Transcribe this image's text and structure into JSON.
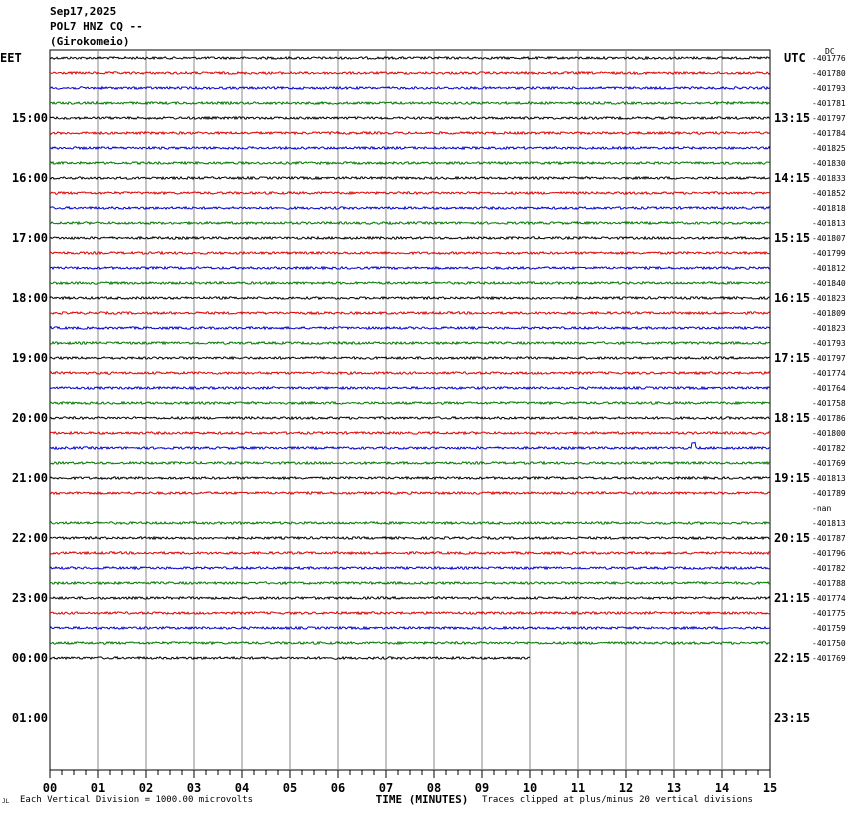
{
  "header": {
    "date": "Sep17,2025",
    "station": "POL7 HNZ CQ --",
    "location": "(Girokomeio)"
  },
  "labels": {
    "left_tz": "EET",
    "right_tz": "UTC",
    "dc_label": "DC",
    "xlabel": "TIME (MINUTES)",
    "scale_note": "Each Vertical Division = 1000.00 microvolts",
    "clip_note": "Traces clipped at plus/minus 20 vertical divisions",
    "corner_mark": "JL"
  },
  "colors": {
    "trace_cycle": [
      "#000000",
      "#dd0000",
      "#0000cc",
      "#007700"
    ],
    "grid": "#888888"
  },
  "chart_data": {
    "type": "line",
    "title": "Sep17,2025 POL7 HNZ CQ -- (Girokomeio)",
    "xlabel": "TIME (MINUTES)",
    "xlim": [
      0,
      15
    ],
    "x_ticks": [
      "00",
      "01",
      "02",
      "03",
      "04",
      "05",
      "06",
      "07",
      "08",
      "09",
      "10",
      "11",
      "12",
      "13",
      "14",
      "15"
    ],
    "left_time_labels": [
      "",
      "15:00",
      "16:00",
      "17:00",
      "18:00",
      "19:00",
      "20:00",
      "21:00",
      "22:00",
      "23:00",
      "00:00",
      "01:00"
    ],
    "right_time_labels": [
      "",
      "13:15",
      "14:15",
      "15:15",
      "16:15",
      "17:15",
      "18:15",
      "19:15",
      "20:15",
      "21:15",
      "22:15",
      "23:15"
    ],
    "traces": [
      {
        "offset": "-401776",
        "end": 15
      },
      {
        "offset": "-401780",
        "end": 15
      },
      {
        "offset": "-401793",
        "end": 15
      },
      {
        "offset": "-401781",
        "end": 15
      },
      {
        "offset": "-401797",
        "end": 15
      },
      {
        "offset": "-401784",
        "end": 15
      },
      {
        "offset": "-401825",
        "end": 15
      },
      {
        "offset": "-401830",
        "end": 15
      },
      {
        "offset": "-401833",
        "end": 15
      },
      {
        "offset": "-401852",
        "end": 15
      },
      {
        "offset": "-401818",
        "end": 15
      },
      {
        "offset": "-401813",
        "end": 15
      },
      {
        "offset": "-401807",
        "end": 15
      },
      {
        "offset": "-401799",
        "end": 15
      },
      {
        "offset": "-401812",
        "end": 15
      },
      {
        "offset": "-401840",
        "end": 15
      },
      {
        "offset": "-401823",
        "end": 15
      },
      {
        "offset": "-401809",
        "end": 15
      },
      {
        "offset": "-401823",
        "end": 15
      },
      {
        "offset": "-401793",
        "end": 15
      },
      {
        "offset": "-401797",
        "end": 15
      },
      {
        "offset": "-401774",
        "end": 15
      },
      {
        "offset": "-401764",
        "end": 15
      },
      {
        "offset": "-401758",
        "end": 15
      },
      {
        "offset": "-401786",
        "end": 15
      },
      {
        "offset": "-401800",
        "end": 15
      },
      {
        "offset": "-401782",
        "end": 15,
        "event_min": 13.4
      },
      {
        "offset": "-401769",
        "end": 15
      },
      {
        "offset": "-401813",
        "end": 15
      },
      {
        "offset": "-401789",
        "end": 15
      },
      {
        "offset": "-nan",
        "end": 0
      },
      {
        "offset": "-401813",
        "end": 15
      },
      {
        "offset": "-401787",
        "end": 15
      },
      {
        "offset": "-401796",
        "end": 15
      },
      {
        "offset": "-401782",
        "end": 15
      },
      {
        "offset": "-401788",
        "end": 15
      },
      {
        "offset": "-401774",
        "end": 15
      },
      {
        "offset": "-401775",
        "end": 15
      },
      {
        "offset": "-401759",
        "end": 15
      },
      {
        "offset": "-401750",
        "end": 15
      },
      {
        "offset": "-401769",
        "end": 10
      }
    ]
  }
}
